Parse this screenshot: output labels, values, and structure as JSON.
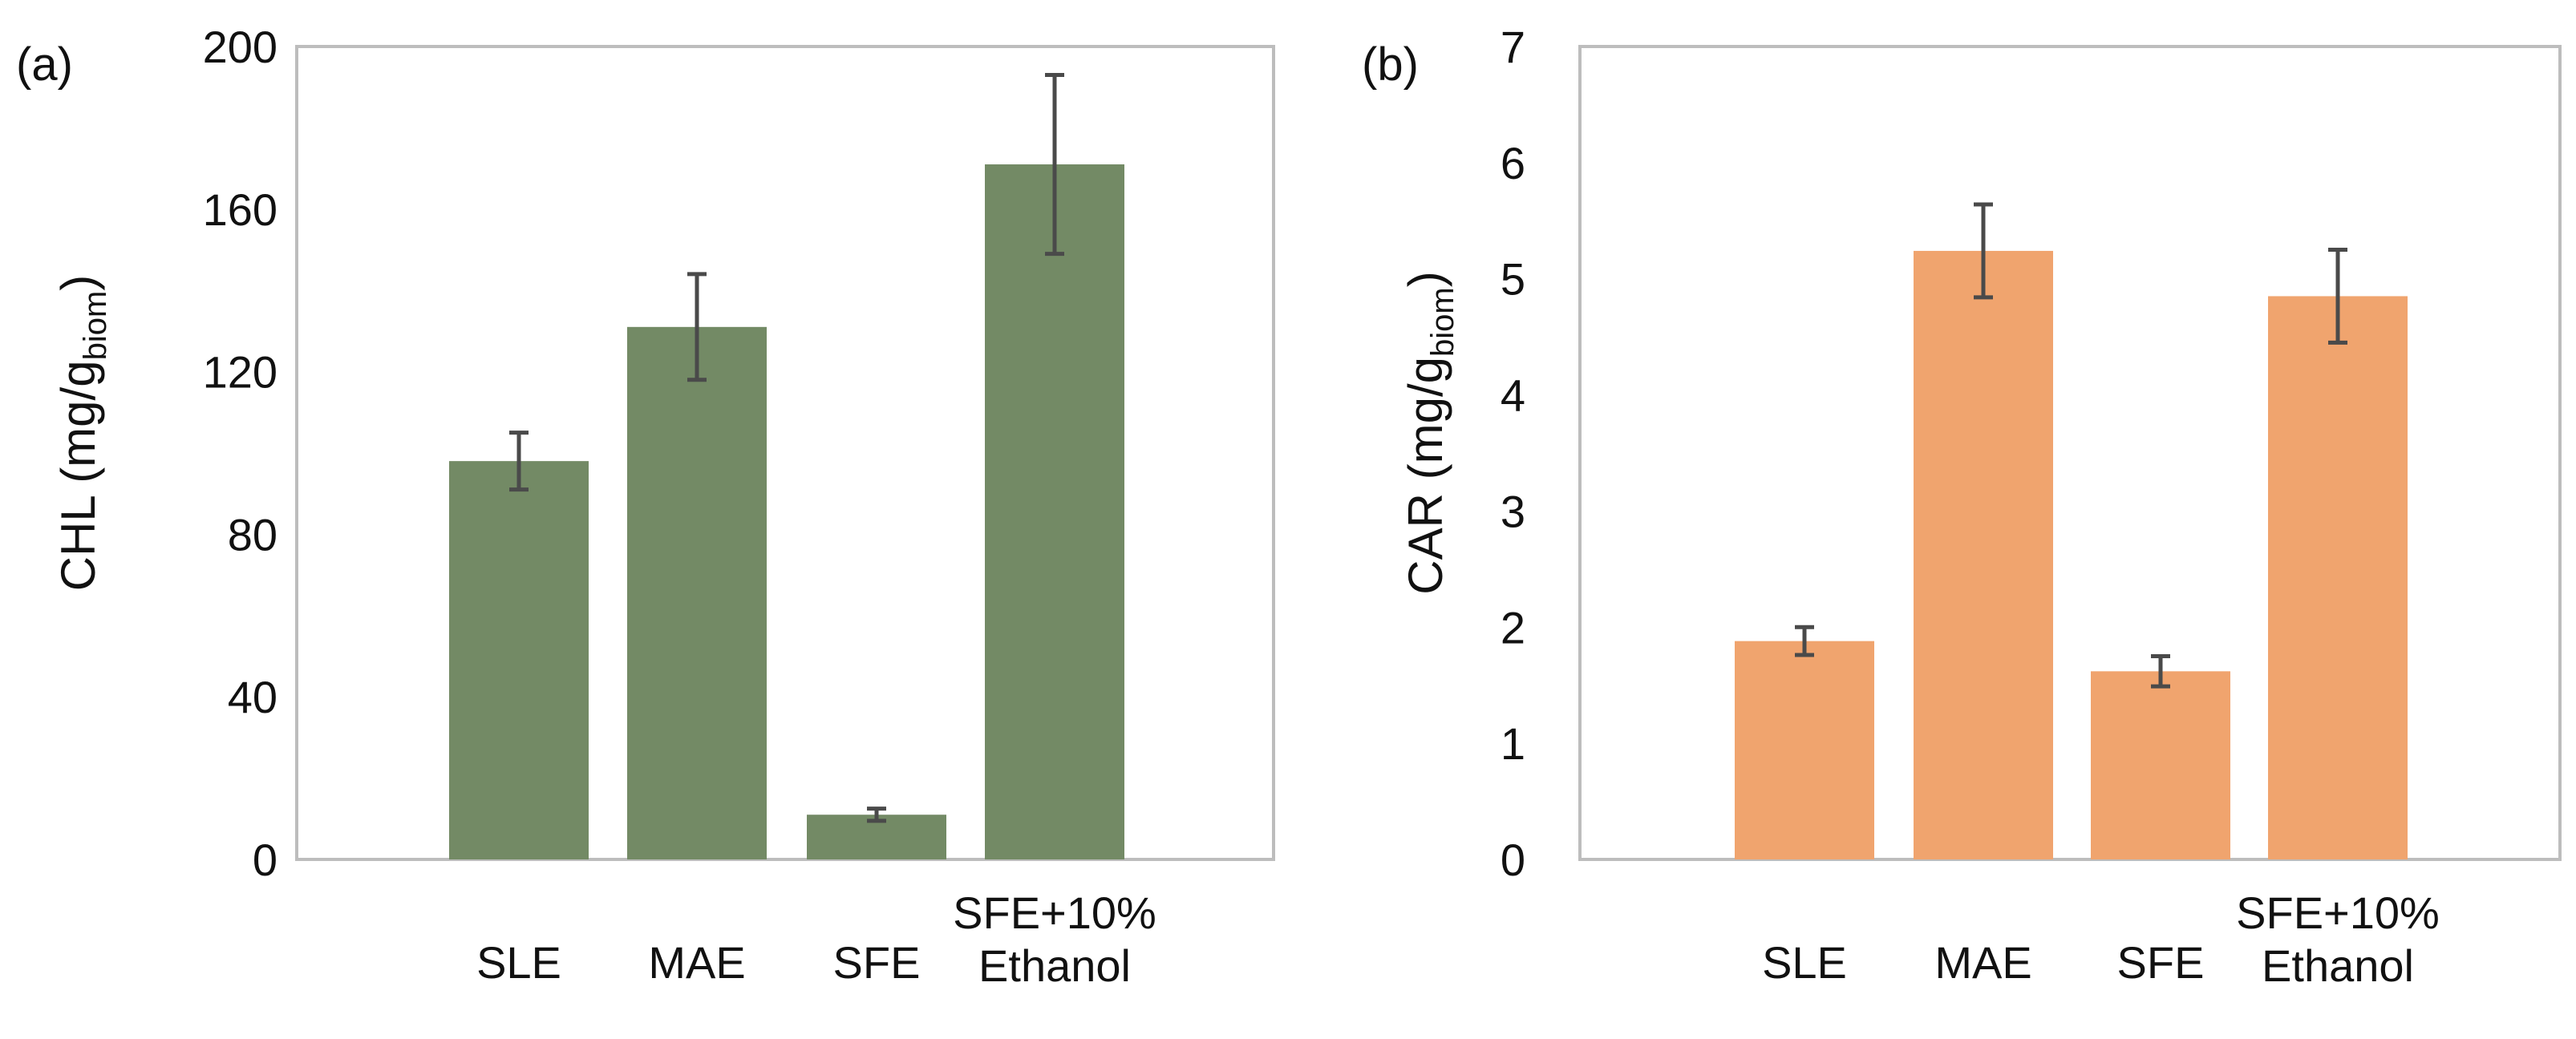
{
  "chart_data": [
    {
      "type": "bar",
      "panel_label": "(a)",
      "categories": [
        "SLE",
        "MAE",
        "SFE",
        "SFE+10%\nEthanol"
      ],
      "values": [
        98,
        131,
        11,
        171
      ],
      "errors": [
        7,
        13,
        1.5,
        22
      ],
      "ylabel_main": "CHL (mg/g",
      "ylabel_sub": "biom",
      "ylabel_close": ")",
      "ylim": [
        0,
        200
      ],
      "yticks": [
        0,
        40,
        80,
        120,
        160,
        200
      ],
      "bar_color": "#738a65",
      "grid": false
    },
    {
      "type": "bar",
      "panel_label": "(b)",
      "categories": [
        "SLE",
        "MAE",
        "SFE",
        "SFE+10%\nEthanol"
      ],
      "values": [
        1.88,
        5.24,
        1.62,
        4.85
      ],
      "errors": [
        0.12,
        0.4,
        0.13,
        0.4
      ],
      "ylabel_main": "CAR (mg/g",
      "ylabel_sub": "biom",
      "ylabel_close": ")",
      "ylim": [
        0,
        7
      ],
      "yticks": [
        0,
        1,
        2,
        3,
        4,
        5,
        6,
        7
      ],
      "bar_color": "#f0a46e",
      "grid": false
    }
  ],
  "colors": {
    "axis": "#bdbdbd",
    "error_bar": "#4a4a4a",
    "text": "#111111"
  }
}
